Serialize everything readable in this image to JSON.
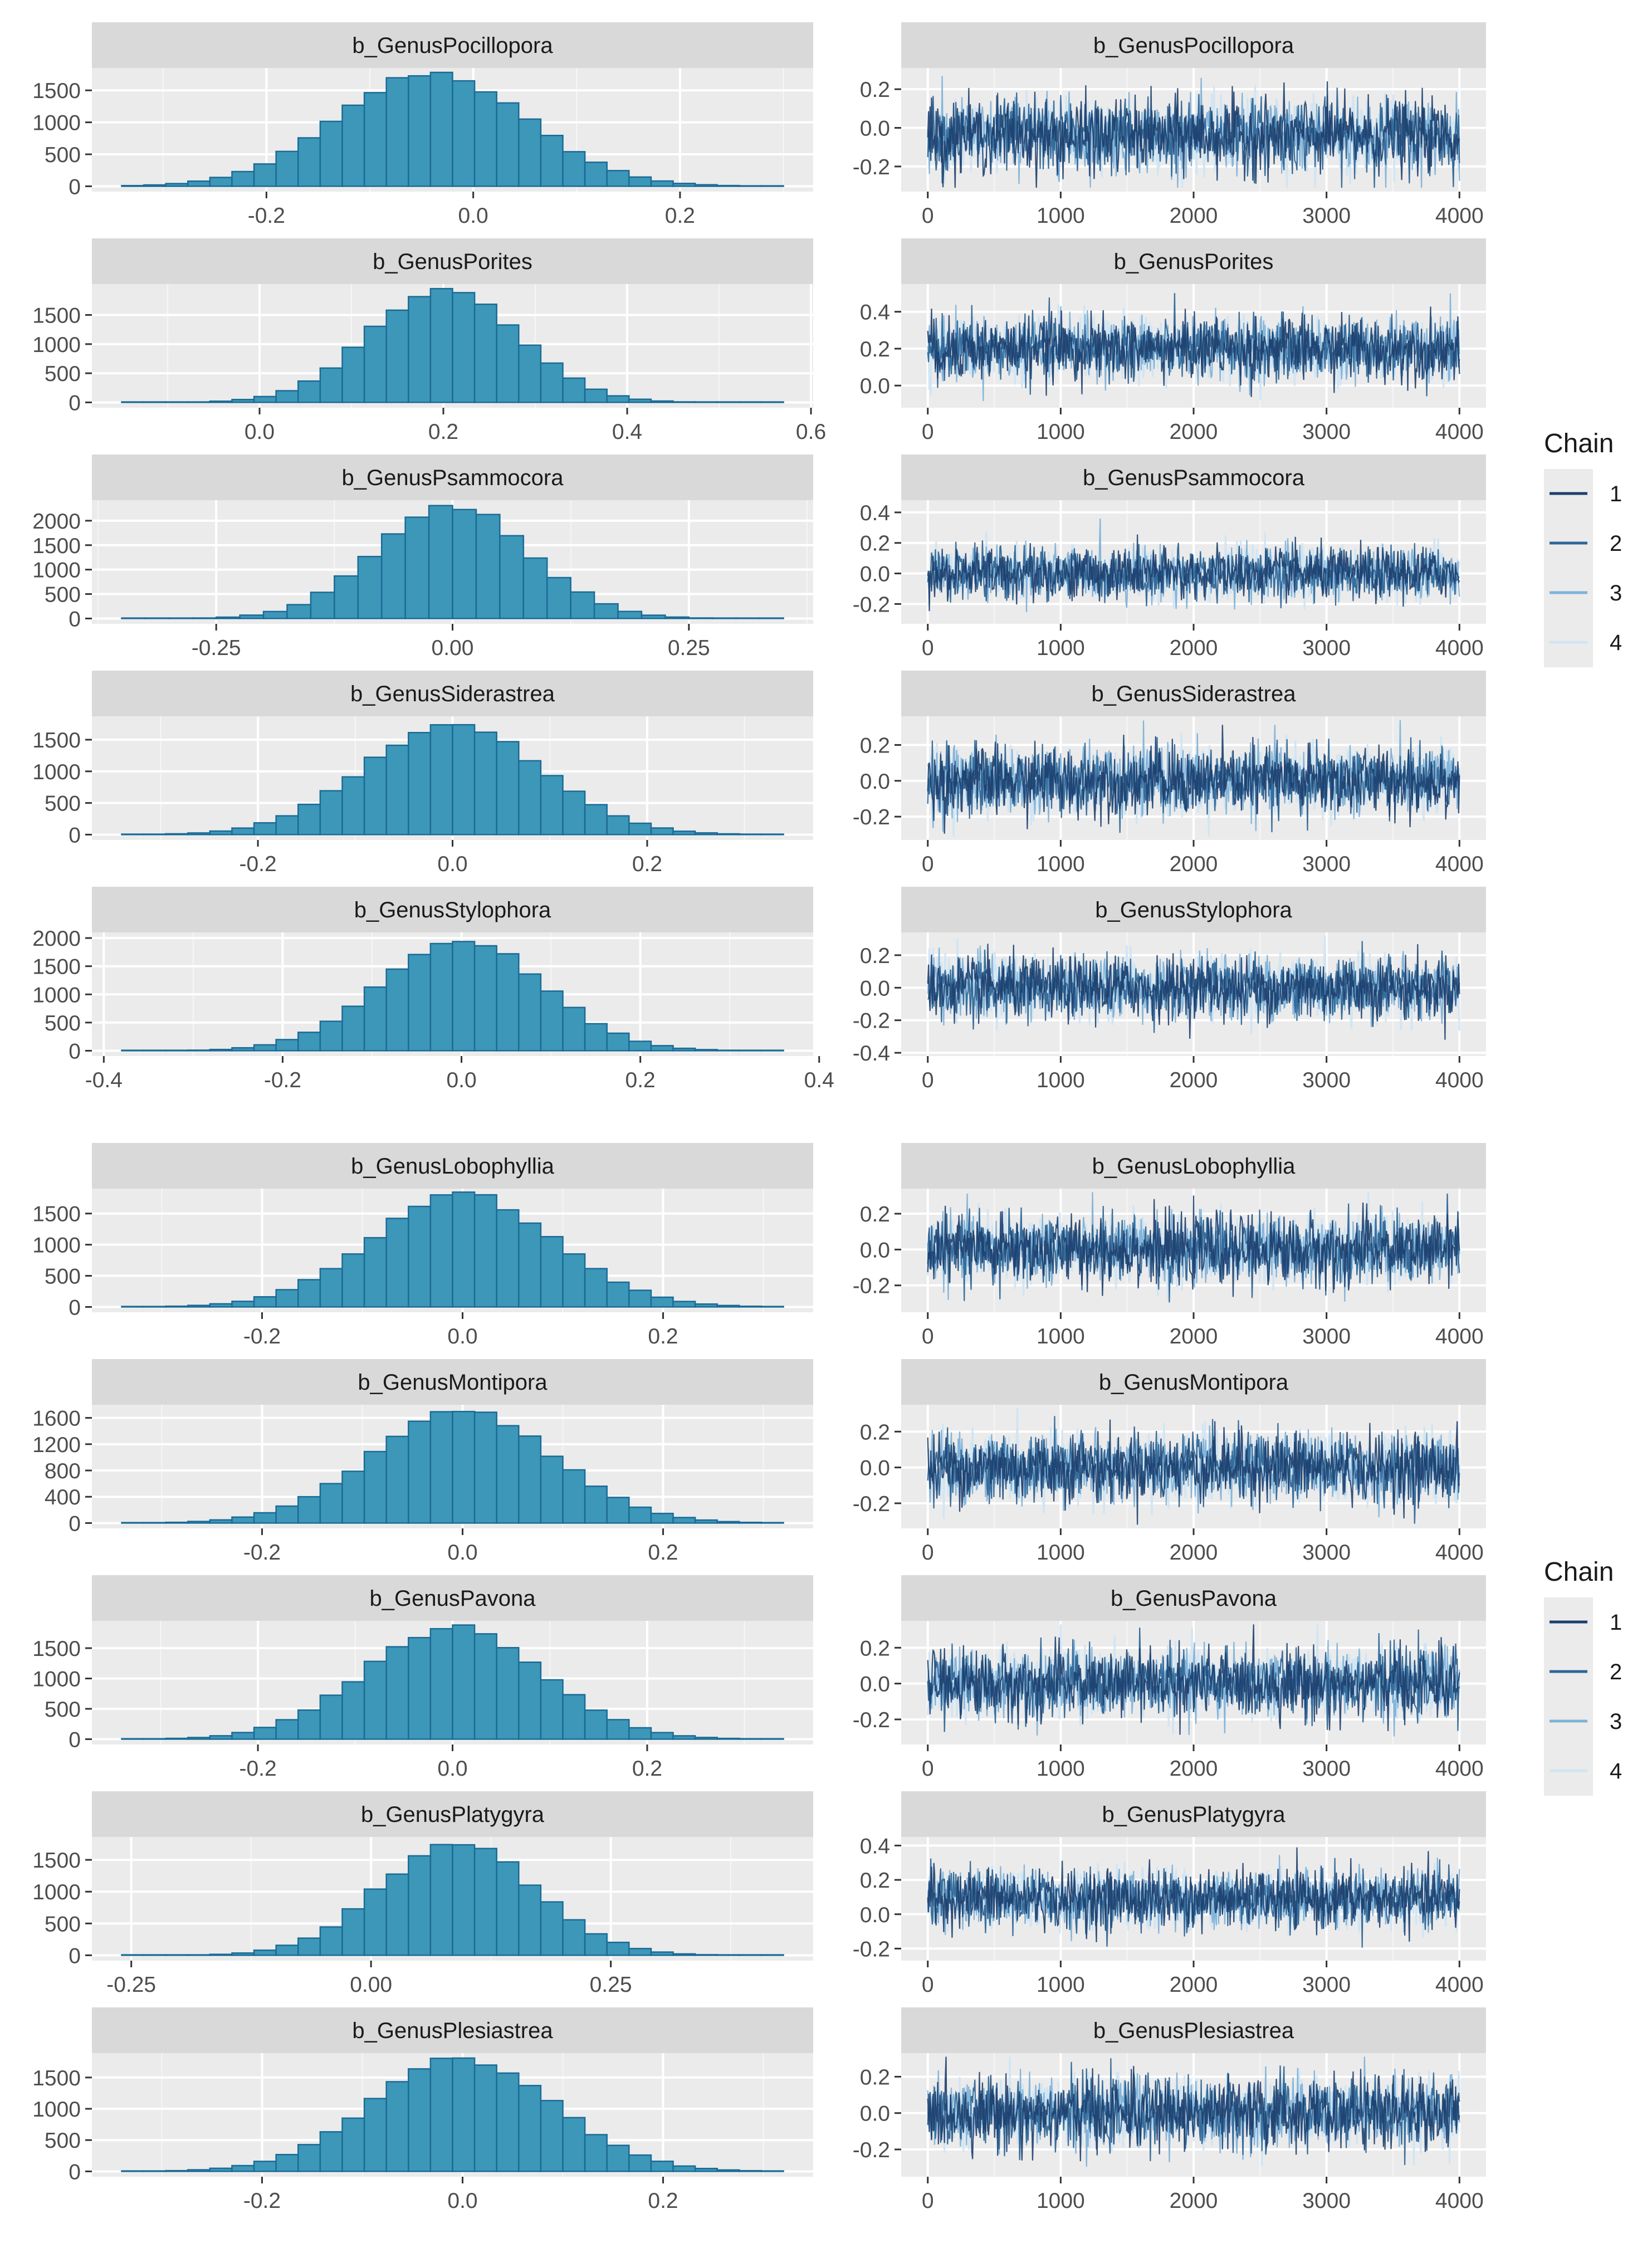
{
  "colors": {
    "strip_bg": "#d9d9d9",
    "panel_bg": "#ebebeb",
    "grid": "#ffffff",
    "hist_fill": "#3d97b8",
    "hist_stroke": "#1b6b96",
    "tick_text": "#4d4d4d",
    "title_text": "#1a1a1a",
    "chain_colors": [
      "#1d3f6e",
      "#2f6797",
      "#7fb2d8",
      "#d0e5f3"
    ]
  },
  "legends": [
    {
      "title": "Chain",
      "labels": [
        "1",
        "2",
        "3",
        "4"
      ]
    },
    {
      "title": "Chain",
      "labels": [
        "1",
        "2",
        "3",
        "4"
      ]
    }
  ],
  "chart_data": [
    {
      "type": "bar",
      "title": "b_GenusPocillopora",
      "center": -0.04,
      "sd": 0.09,
      "peak": 1780,
      "x_range": [
        -0.34,
        0.3
      ],
      "bins": 30,
      "x_ticks": [
        "-0.2",
        "0.0",
        "0.2"
      ],
      "x_tick_values": [
        -0.2,
        0.0,
        0.2
      ],
      "y_ticks": [
        "0",
        "500",
        "1000",
        "1500"
      ],
      "y_tick_values": [
        0,
        500,
        1000,
        1500
      ],
      "ylim": [
        0,
        1850
      ]
    },
    {
      "type": "line",
      "title": "b_GenusPocillopora",
      "xlim": [
        0,
        4000
      ],
      "x_ticks": [
        "0",
        "1000",
        "2000",
        "3000",
        "4000"
      ],
      "y_ticks": [
        "-0.2",
        "0.0",
        "0.2"
      ],
      "y_tick_values": [
        -0.2,
        0.0,
        0.2
      ],
      "ylim": [
        -0.33,
        0.31
      ],
      "center": -0.04,
      "sd": 0.09,
      "chains": [
        "1",
        "2",
        "3",
        "4"
      ]
    },
    {
      "type": "bar",
      "title": "b_GenusPorites",
      "center": 0.2,
      "sd": 0.08,
      "peak": 1950,
      "x_range": [
        -0.15,
        0.57
      ],
      "bins": 30,
      "x_ticks": [
        "0.0",
        "0.2",
        "0.4",
        "0.6"
      ],
      "x_tick_values": [
        0.0,
        0.2,
        0.4,
        0.6
      ],
      "y_ticks": [
        "0",
        "500",
        "1000",
        "1500"
      ],
      "y_tick_values": [
        0,
        500,
        1000,
        1500
      ],
      "ylim": [
        0,
        2030
      ]
    },
    {
      "type": "line",
      "title": "b_GenusPorites",
      "xlim": [
        0,
        4000
      ],
      "x_ticks": [
        "0",
        "1000",
        "2000",
        "3000",
        "4000"
      ],
      "y_ticks": [
        "0.0",
        "0.2",
        "0.4"
      ],
      "y_tick_values": [
        0.0,
        0.2,
        0.4
      ],
      "ylim": [
        -0.12,
        0.55
      ],
      "center": 0.2,
      "sd": 0.08,
      "chains": [
        "1",
        "2",
        "3",
        "4"
      ]
    },
    {
      "type": "bar",
      "title": "b_GenusPsammocora",
      "center": 0.0,
      "sd": 0.08,
      "peak": 2300,
      "x_range": [
        -0.35,
        0.35
      ],
      "bins": 28,
      "x_ticks": [
        "-0.25",
        "0.00",
        "0.25"
      ],
      "x_tick_values": [
        -0.25,
        0.0,
        0.25
      ],
      "y_ticks": [
        "0",
        "500",
        "1000",
        "1500",
        "2000"
      ],
      "y_tick_values": [
        0,
        500,
        1000,
        1500,
        2000
      ],
      "ylim": [
        0,
        2420
      ]
    },
    {
      "type": "line",
      "title": "b_GenusPsammocora",
      "xlim": [
        0,
        4000
      ],
      "x_ticks": [
        "0",
        "1000",
        "2000",
        "3000",
        "4000"
      ],
      "y_ticks": [
        "-0.2",
        "0.0",
        "0.2",
        "0.4"
      ],
      "y_tick_values": [
        -0.2,
        0.0,
        0.2,
        0.4
      ],
      "ylim": [
        -0.33,
        0.48
      ],
      "center": 0.0,
      "sd": 0.08,
      "chains": [
        "1",
        "2",
        "3",
        "4"
      ]
    },
    {
      "type": "bar",
      "title": "b_GenusSiderastrea",
      "center": 0.0,
      "sd": 0.09,
      "peak": 1780,
      "x_range": [
        -0.34,
        0.34
      ],
      "bins": 30,
      "x_ticks": [
        "-0.2",
        "0.0",
        "0.2"
      ],
      "x_tick_values": [
        -0.2,
        0.0,
        0.2
      ],
      "y_ticks": [
        "0",
        "500",
        "1000",
        "1500"
      ],
      "y_tick_values": [
        0,
        500,
        1000,
        1500
      ],
      "ylim": [
        0,
        1870
      ]
    },
    {
      "type": "line",
      "title": "b_GenusSiderastrea",
      "xlim": [
        0,
        4000
      ],
      "x_ticks": [
        "0",
        "1000",
        "2000",
        "3000",
        "4000"
      ],
      "y_ticks": [
        "-0.2",
        "0.0",
        "0.2"
      ],
      "y_tick_values": [
        -0.2,
        0.0,
        0.2
      ],
      "ylim": [
        -0.33,
        0.36
      ],
      "center": 0.0,
      "sd": 0.09,
      "chains": [
        "1",
        "2",
        "3",
        "4"
      ]
    },
    {
      "type": "bar",
      "title": "b_GenusStylophora",
      "center": 0.0,
      "sd": 0.09,
      "peak": 2000,
      "x_range": [
        -0.38,
        0.36
      ],
      "bins": 30,
      "x_ticks": [
        "-0.4",
        "-0.2",
        "0.0",
        "0.2",
        "0.4"
      ],
      "x_tick_values": [
        -0.4,
        -0.2,
        0.0,
        0.2,
        0.4
      ],
      "y_ticks": [
        "0",
        "500",
        "1000",
        "1500",
        "2000"
      ],
      "y_tick_values": [
        0,
        500,
        1000,
        1500,
        2000
      ],
      "ylim": [
        0,
        2100
      ]
    },
    {
      "type": "line",
      "title": "b_GenusStylophora",
      "xlim": [
        0,
        4000
      ],
      "x_ticks": [
        "0",
        "1000",
        "2000",
        "3000",
        "4000"
      ],
      "y_ticks": [
        "-0.4",
        "-0.2",
        "0.0",
        "0.2"
      ],
      "y_tick_values": [
        -0.4,
        -0.2,
        0.0,
        0.2
      ],
      "ylim": [
        -0.42,
        0.34
      ],
      "center": 0.0,
      "sd": 0.09,
      "chains": [
        "1",
        "2",
        "3",
        "4"
      ]
    },
    {
      "type": "bar",
      "title": "b_GenusLobophyllia",
      "center": 0.0,
      "sd": 0.09,
      "peak": 1800,
      "x_range": [
        -0.34,
        0.32
      ],
      "bins": 30,
      "x_ticks": [
        "-0.2",
        "0.0",
        "0.2"
      ],
      "x_tick_values": [
        -0.2,
        0.0,
        0.2
      ],
      "y_ticks": [
        "0",
        "500",
        "1000",
        "1500"
      ],
      "y_tick_values": [
        0,
        500,
        1000,
        1500
      ],
      "ylim": [
        0,
        1900
      ]
    },
    {
      "type": "line",
      "title": "b_GenusLobophyllia",
      "xlim": [
        0,
        4000
      ],
      "x_ticks": [
        "0",
        "1000",
        "2000",
        "3000",
        "4000"
      ],
      "y_ticks": [
        "-0.2",
        "0.0",
        "0.2"
      ],
      "y_tick_values": [
        -0.2,
        0.0,
        0.2
      ],
      "ylim": [
        -0.35,
        0.34
      ],
      "center": 0.0,
      "sd": 0.09,
      "chains": [
        "1",
        "2",
        "3",
        "4"
      ]
    },
    {
      "type": "bar",
      "title": "b_GenusMontipora",
      "center": 0.0,
      "sd": 0.09,
      "peak": 1700,
      "x_range": [
        -0.34,
        0.32
      ],
      "bins": 30,
      "x_ticks": [
        "-0.2",
        "0.0",
        "0.2"
      ],
      "x_tick_values": [
        -0.2,
        0.0,
        0.2
      ],
      "y_ticks": [
        "0",
        "400",
        "800",
        "1200",
        "1600"
      ],
      "y_tick_values": [
        0,
        400,
        800,
        1200,
        1600
      ],
      "ylim": [
        0,
        1800
      ]
    },
    {
      "type": "line",
      "title": "b_GenusMontipora",
      "xlim": [
        0,
        4000
      ],
      "x_ticks": [
        "0",
        "1000",
        "2000",
        "3000",
        "4000"
      ],
      "y_ticks": [
        "-0.2",
        "0.0",
        "0.2"
      ],
      "y_tick_values": [
        -0.2,
        0.0,
        0.2
      ],
      "ylim": [
        -0.34,
        0.35
      ],
      "center": 0.0,
      "sd": 0.09,
      "chains": [
        "1",
        "2",
        "3",
        "4"
      ]
    },
    {
      "type": "bar",
      "title": "b_GenusPavona",
      "center": 0.0,
      "sd": 0.09,
      "peak": 1860,
      "x_range": [
        -0.34,
        0.34
      ],
      "bins": 30,
      "x_ticks": [
        "-0.2",
        "0.0",
        "0.2"
      ],
      "x_tick_values": [
        -0.2,
        0.0,
        0.2
      ],
      "y_ticks": [
        "0",
        "500",
        "1000",
        "1500"
      ],
      "y_tick_values": [
        0,
        500,
        1000,
        1500
      ],
      "ylim": [
        0,
        1950
      ]
    },
    {
      "type": "line",
      "title": "b_GenusPavona",
      "xlim": [
        0,
        4000
      ],
      "x_ticks": [
        "0",
        "1000",
        "2000",
        "3000",
        "4000"
      ],
      "y_ticks": [
        "-0.2",
        "0.0",
        "0.2"
      ],
      "y_tick_values": [
        -0.2,
        0.0,
        0.2
      ],
      "ylim": [
        -0.34,
        0.35
      ],
      "center": 0.0,
      "sd": 0.09,
      "chains": [
        "1",
        "2",
        "3",
        "4"
      ]
    },
    {
      "type": "bar",
      "title": "b_GenusPlatygyra",
      "center": 0.09,
      "sd": 0.08,
      "peak": 1780,
      "x_range": [
        -0.26,
        0.43
      ],
      "bins": 30,
      "x_ticks": [
        "-0.25",
        "0.00",
        "0.25"
      ],
      "x_tick_values": [
        -0.25,
        0.0,
        0.25
      ],
      "y_ticks": [
        "0",
        "500",
        "1000",
        "1500"
      ],
      "y_tick_values": [
        0,
        500,
        1000,
        1500
      ],
      "ylim": [
        0,
        1860
      ]
    },
    {
      "type": "line",
      "title": "b_GenusPlatygyra",
      "xlim": [
        0,
        4000
      ],
      "x_ticks": [
        "0",
        "1000",
        "2000",
        "3000",
        "4000"
      ],
      "y_ticks": [
        "-0.2",
        "0.0",
        "0.2",
        "0.4"
      ],
      "y_tick_values": [
        -0.2,
        0.0,
        0.2,
        0.4
      ],
      "ylim": [
        -0.27,
        0.45
      ],
      "center": 0.09,
      "sd": 0.08,
      "chains": [
        "1",
        "2",
        "3",
        "4"
      ]
    },
    {
      "type": "bar",
      "title": "b_GenusPlesiastrea",
      "center": 0.0,
      "sd": 0.09,
      "peak": 1800,
      "x_range": [
        -0.34,
        0.32
      ],
      "bins": 30,
      "x_ticks": [
        "-0.2",
        "0.0",
        "0.2"
      ],
      "x_tick_values": [
        -0.2,
        0.0,
        0.2
      ],
      "y_ticks": [
        "0",
        "500",
        "1000",
        "1500"
      ],
      "y_tick_values": [
        0,
        500,
        1000,
        1500
      ],
      "ylim": [
        0,
        1890
      ]
    },
    {
      "type": "line",
      "title": "b_GenusPlesiastrea",
      "xlim": [
        0,
        4000
      ],
      "x_ticks": [
        "0",
        "1000",
        "2000",
        "3000",
        "4000"
      ],
      "y_ticks": [
        "-0.2",
        "0.0",
        "0.2"
      ],
      "y_tick_values": [
        -0.2,
        0.0,
        0.2
      ],
      "ylim": [
        -0.35,
        0.33
      ],
      "center": 0.0,
      "sd": 0.09,
      "chains": [
        "1",
        "2",
        "3",
        "4"
      ]
    }
  ]
}
